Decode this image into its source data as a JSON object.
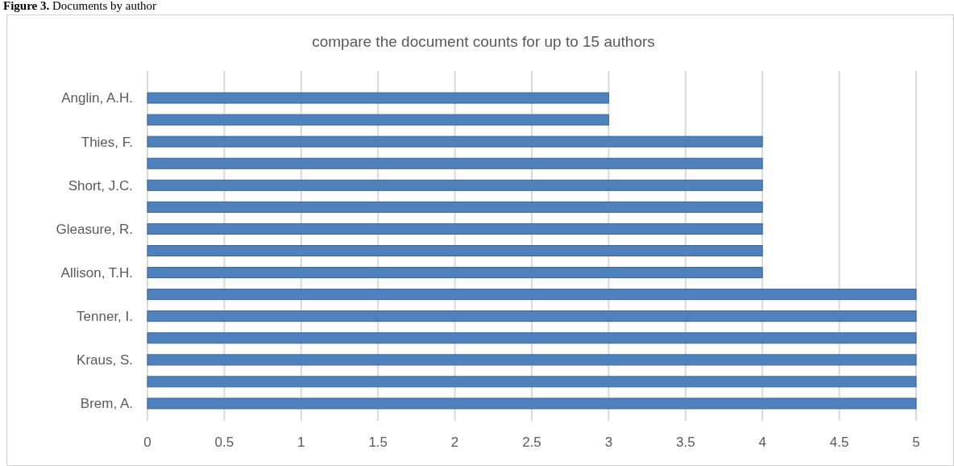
{
  "chart_data": {
    "type": "bar",
    "orientation": "horizontal",
    "title": "compare the document counts for up to 15 authors",
    "annotations": [
      "Figure 3. Documents by author"
    ],
    "categories": [
      "Anglin, A.H.",
      null,
      "Thies, F.",
      null,
      "Short, J.C.",
      null,
      "Gleasure, R.",
      null,
      "Allison, T.H.",
      null,
      "Tenner, I.",
      null,
      "Kraus, S.",
      null,
      "Brem, A."
    ],
    "values": [
      3,
      3,
      4,
      4,
      4,
      4,
      4,
      4,
      4,
      5,
      5,
      5,
      5,
      5,
      5
    ],
    "color": "#4f81bd",
    "xlim": [
      0,
      5
    ],
    "xticks": [
      0,
      0.5,
      1,
      1.5,
      2,
      2.5,
      3,
      3.5,
      4,
      4.5,
      5
    ],
    "grid": "x"
  }
}
